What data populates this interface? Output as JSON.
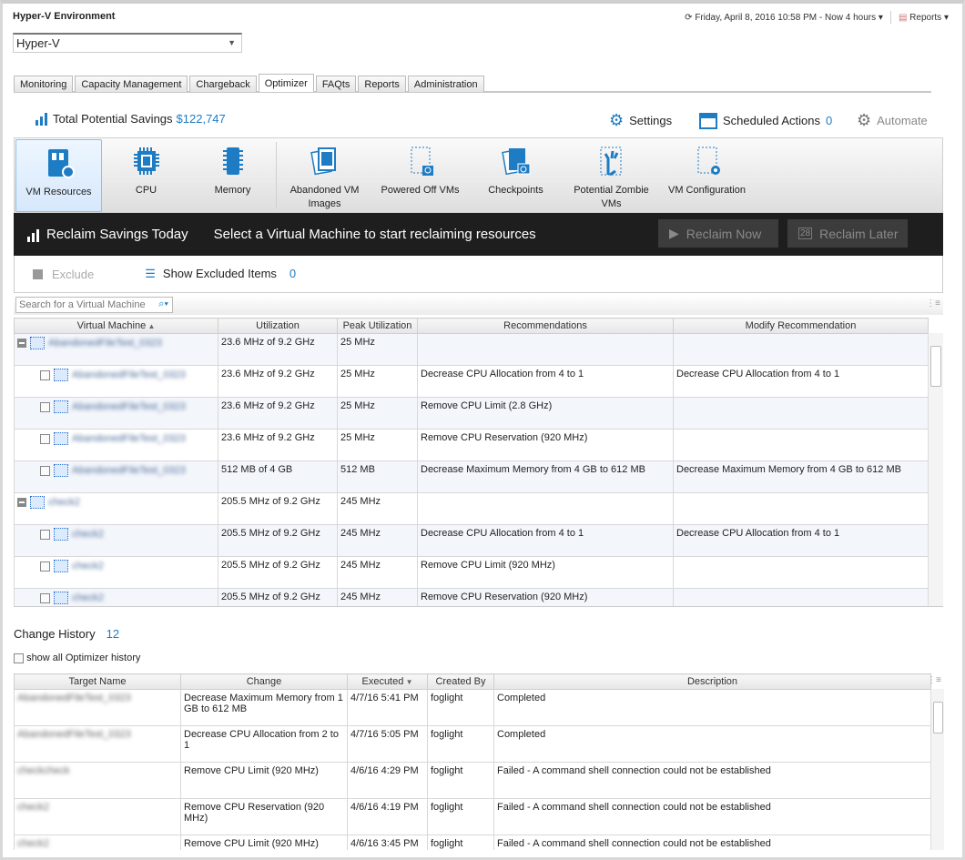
{
  "header": {
    "title": "Hyper-V Environment",
    "time_range": "Friday, April 8, 2016 10:58 PM - Now 4 hours",
    "reports": "Reports"
  },
  "selector": {
    "value": "Hyper-V"
  },
  "tabs": [
    "Monitoring",
    "Capacity Management",
    "Chargeback",
    "Optimizer",
    "FAQts",
    "Reports",
    "Administration"
  ],
  "active_tab": "Optimizer",
  "savings": {
    "label": "Total Potential Savings",
    "value": "$122,747"
  },
  "actions": {
    "settings": "Settings",
    "scheduled": "Scheduled Actions",
    "scheduled_count": "0",
    "automate": "Automate"
  },
  "toolbar": [
    {
      "label": "VM Resources",
      "icon": "vm-resources-icon"
    },
    {
      "label": "CPU",
      "icon": "cpu-icon"
    },
    {
      "label": "Memory",
      "icon": "memory-icon"
    },
    {
      "label": "Abandoned VM Images",
      "icon": "abandoned-images-icon"
    },
    {
      "label": "Powered Off VMs",
      "icon": "powered-off-icon"
    },
    {
      "label": "Checkpoints",
      "icon": "checkpoints-icon"
    },
    {
      "label": "Potential Zombie VMs",
      "icon": "zombie-icon"
    },
    {
      "label": "VM Configuration",
      "icon": "vm-config-icon"
    }
  ],
  "reclaim": {
    "title": "Reclaim Savings Today",
    "message": "Select a Virtual Machine to start reclaiming resources",
    "now": "Reclaim Now",
    "later": "Reclaim Later"
  },
  "exclude": {
    "exclude": "Exclude",
    "show_excluded": "Show Excluded Items",
    "excluded_count": "0"
  },
  "search": {
    "placeholder": "Search for a Virtual Machine"
  },
  "vm_table": {
    "columns": [
      "Virtual Machine",
      "Utilization",
      "Peak Utilization",
      "Recommendations",
      "Modify Recommendation"
    ],
    "rows": [
      {
        "level": 0,
        "name": "AbandonedFileTest_0323",
        "util": "23.6 MHz of 9.2 GHz",
        "peak": "25 MHz",
        "rec": "",
        "mod": ""
      },
      {
        "level": 1,
        "name": "AbandonedFileTest_0323",
        "util": "23.6 MHz of 9.2 GHz",
        "peak": "25 MHz",
        "rec": "Decrease CPU Allocation from 4 to 1",
        "mod": "Decrease CPU Allocation from 4 to 1"
      },
      {
        "level": 1,
        "name": "AbandonedFileTest_0323",
        "util": "23.6 MHz of 9.2 GHz",
        "peak": "25 MHz",
        "rec": "Remove CPU Limit (2.8 GHz)",
        "mod": ""
      },
      {
        "level": 1,
        "name": "AbandonedFileTest_0323",
        "util": "23.6 MHz of 9.2 GHz",
        "peak": "25 MHz",
        "rec": "Remove CPU Reservation (920 MHz)",
        "mod": ""
      },
      {
        "level": 1,
        "name": "AbandonedFileTest_0323",
        "util": "512 MB of 4 GB",
        "peak": "512 MB",
        "rec": "Decrease Maximum Memory from 4 GB to 612 MB",
        "mod": "Decrease Maximum Memory from 4 GB to 612 MB"
      },
      {
        "level": 0,
        "name": "check2",
        "util": "205.5 MHz of 9.2 GHz",
        "peak": "245 MHz",
        "rec": "",
        "mod": ""
      },
      {
        "level": 1,
        "name": "check2",
        "util": "205.5 MHz of 9.2 GHz",
        "peak": "245 MHz",
        "rec": "Decrease CPU Allocation from 4 to 1",
        "mod": "Decrease CPU Allocation from 4 to 1"
      },
      {
        "level": 1,
        "name": "check2",
        "util": "205.5 MHz of 9.2 GHz",
        "peak": "245 MHz",
        "rec": "Remove CPU Limit (920 MHz)",
        "mod": ""
      },
      {
        "level": 1,
        "name": "check2",
        "util": "205.5 MHz of 9.2 GHz",
        "peak": "245 MHz",
        "rec": "Remove CPU Reservation (920 MHz)",
        "mod": ""
      }
    ]
  },
  "history": {
    "title": "Change History",
    "count": "12",
    "show_all": "show all Optimizer history",
    "columns": [
      "Target Name",
      "Change",
      "Executed",
      "Created By",
      "Description"
    ],
    "rows": [
      {
        "target": "AbandonedFileTest_0323",
        "change": "Decrease Maximum Memory from 1 GB to 612 MB",
        "executed": "4/7/16 5:41 PM",
        "by": "foglight",
        "desc": "Completed"
      },
      {
        "target": "AbandonedFileTest_0323",
        "change": "Decrease CPU Allocation from 2 to 1",
        "executed": "4/7/16 5:05 PM",
        "by": "foglight",
        "desc": "Completed"
      },
      {
        "target": "checkcheck",
        "change": "Remove CPU Limit (920 MHz)",
        "executed": "4/6/16 4:29 PM",
        "by": "foglight",
        "desc": "Failed  - A command shell connection could not be established"
      },
      {
        "target": "check2",
        "change": "Remove CPU Reservation (920 MHz)",
        "executed": "4/6/16 4:19 PM",
        "by": "foglight",
        "desc": "Failed  - A command shell connection could not be established"
      },
      {
        "target": "check2",
        "change": "Remove CPU Limit (920 MHz)",
        "executed": "4/6/16 3:45 PM",
        "by": "foglight",
        "desc": "Failed  - A command shell connection could not be established"
      }
    ]
  },
  "colors": {
    "accent": "#1d7cc4",
    "bar": "#1e1e1e"
  }
}
